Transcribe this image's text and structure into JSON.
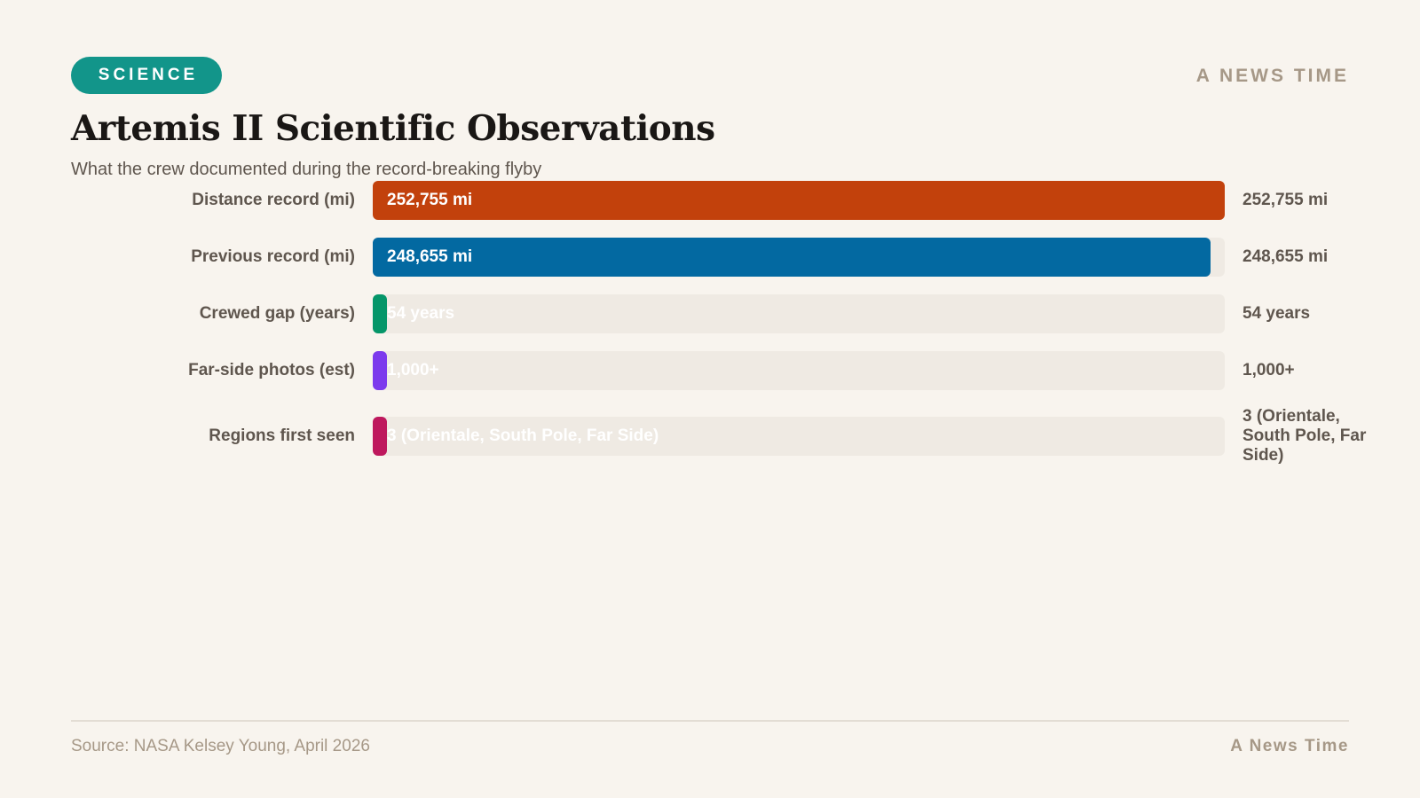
{
  "header": {
    "category": "SCIENCE",
    "brand": "A NEWS TIME"
  },
  "headline": {
    "title": "Artemis II Scientific Observations",
    "subtitle": "What the crew documented during the record-breaking flyby"
  },
  "chart_data": {
    "type": "bar",
    "orientation": "horizontal",
    "categories": [
      "Distance record (mi)",
      "Previous record (mi)",
      "Crewed gap (years)",
      "Far-side photos (est)",
      "Regions first seen"
    ],
    "values": [
      252755,
      248655,
      54,
      1000,
      3
    ],
    "value_labels": [
      "252,755 mi",
      "248,655 mi",
      "54 years",
      "1,000+",
      "3 (Orientale, South Pole, Far Side)"
    ],
    "colors": [
      "#c2410c",
      "#0369a1",
      "#059669",
      "#7c3aed",
      "#be185d"
    ],
    "xlim": [
      0,
      252755
    ],
    "track_color": "#efeae3",
    "grid": false,
    "legend": "none"
  },
  "footer": {
    "source": "Source: NASA Kelsey Young, April 2026",
    "brand": "A News Time"
  }
}
